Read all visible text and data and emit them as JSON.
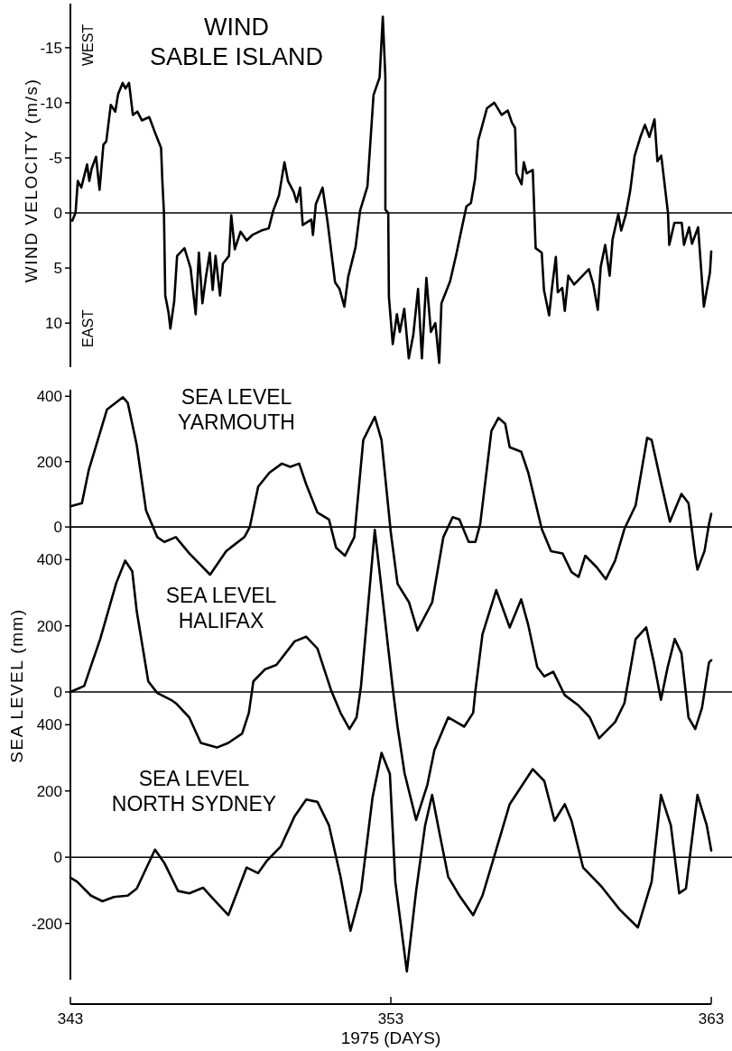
{
  "chart_data": [
    {
      "type": "line",
      "title": "WIND",
      "subtitle": "SABLE ISLAND",
      "ylabel": "WIND VELOCITY (m/s)",
      "annotations": [
        "WEST",
        "EAST"
      ],
      "xlim": [
        343,
        363
      ],
      "ylim": [
        14,
        -19
      ],
      "yticks": [
        -15,
        -10,
        -5,
        0,
        5,
        10
      ],
      "tick_labels": "y",
      "ref_lines": [
        {
          "axis": "y",
          "value": 0
        }
      ],
      "series": [
        {
          "color": "#000000",
          "x": [
            343.06,
            343.16,
            343.23,
            343.34,
            343.52,
            343.59,
            343.66,
            343.8,
            343.91,
            344.03,
            344.12,
            344.26,
            344.4,
            344.49,
            344.63,
            344.72,
            344.83,
            344.95,
            345.09,
            345.23,
            345.46,
            345.64,
            345.83,
            345.87,
            345.92,
            345.96,
            346.06,
            346.12,
            346.24,
            346.33,
            346.56,
            346.75,
            346.91,
            347.01,
            347.12,
            347.23,
            347.35,
            347.44,
            347.53,
            347.67,
            347.76,
            347.95,
            348.02,
            348.13,
            348.31,
            348.5,
            348.68,
            348.96,
            349.19,
            349.33,
            349.51,
            349.68,
            349.79,
            349.97,
            350.06,
            350.17,
            350.25,
            350.52,
            350.57,
            350.66,
            350.87,
            351.03,
            351.26,
            351.4,
            351.55,
            351.67,
            351.9,
            352.04,
            352.27,
            352.46,
            352.65,
            352.75,
            352.83,
            352.83,
            352.92,
            352.94,
            353.06,
            353.19,
            353.28,
            353.42,
            353.56,
            353.7,
            353.85,
            353.97,
            354.11,
            354.25,
            354.39,
            354.51,
            354.58,
            354.85,
            355.04,
            355.22,
            355.36,
            355.5,
            355.63,
            355.73,
            355.86,
            356.0,
            356.23,
            356.46,
            356.65,
            356.78,
            356.88,
            356.92,
            357.08,
            357.15,
            357.24,
            357.43,
            357.48,
            357.52,
            357.71,
            357.78,
            357.94,
            358.03,
            358.15,
            358.21,
            358.35,
            358.43,
            358.54,
            358.72,
            358.95,
            359.18,
            359.32,
            359.46,
            359.55,
            359.69,
            359.83,
            359.92,
            360.1,
            360.19,
            360.33,
            360.47,
            360.61,
            360.79,
            360.93,
            361.07,
            361.23,
            361.32,
            361.44,
            361.65,
            361.69,
            361.85,
            362.08,
            362.15,
            362.31,
            362.4,
            362.59,
            362.77,
            362.96,
            363.0
          ],
          "values": [
            0.7,
            0,
            -2.9,
            -2.3,
            -4.4,
            -2.9,
            -4.0,
            -5.1,
            -2.1,
            -6.2,
            -6.5,
            -9.8,
            -9.2,
            -10.8,
            -11.8,
            -11.3,
            -11.8,
            -8.9,
            -9.2,
            -8.4,
            -8.7,
            -7.3,
            -5.9,
            -2.9,
            0,
            7.5,
            9.0,
            10.5,
            8.0,
            3.9,
            3.2,
            5.0,
            9.2,
            3.6,
            8.2,
            5.8,
            3.6,
            7.0,
            3.9,
            7.5,
            4.6,
            3.9,
            0.2,
            3.3,
            1.7,
            2.5,
            2.0,
            1.6,
            1.4,
            -0.2,
            -1.6,
            -4.6,
            -2.9,
            -1.9,
            -1.0,
            -2.3,
            1.1,
            0.6,
            2.0,
            -0.8,
            -2.3,
            0.9,
            6.3,
            6.9,
            8.5,
            5.8,
            3.1,
            -0.2,
            -2.4,
            -10.7,
            -12.3,
            -17.8,
            -12.3,
            -0.3,
            0,
            7.6,
            11.9,
            9.2,
            10.8,
            8.7,
            13.2,
            11.1,
            6.9,
            13.2,
            5.9,
            10.8,
            10.0,
            13.6,
            8.2,
            6.2,
            3.8,
            1.3,
            -0.6,
            -0.9,
            -3.1,
            -6.6,
            -8.0,
            -9.5,
            -10.0,
            -8.9,
            -9.3,
            -8.2,
            -7.7,
            -3.6,
            -2.6,
            -4.6,
            -3.6,
            -3.9,
            0,
            3.2,
            3.6,
            7.0,
            9.3,
            6.8,
            4.0,
            7.2,
            6.8,
            8.9,
            5.7,
            6.5,
            5.8,
            5.1,
            6.5,
            8.8,
            4.9,
            2.9,
            5.7,
            2.4,
            0.1,
            1.6,
            0.2,
            -2.0,
            -5.2,
            -6.9,
            -8.0,
            -6.9,
            -8.5,
            -4.7,
            -5.2,
            0,
            2.9,
            0.9,
            0.9,
            2.9,
            1.3,
            2.8,
            1.3,
            8.5,
            5.4,
            3.5
          ]
        }
      ]
    },
    {
      "type": "line",
      "title": "SEA LEVEL",
      "subtitle": "YARMOUTH",
      "xlim": [
        343,
        363
      ],
      "ylim": [
        -320,
        420
      ],
      "yticks": [
        0,
        200,
        400
      ],
      "tick_labels": "y",
      "ref_lines": [
        {
          "axis": "y",
          "value": 0
        }
      ],
      "series": [
        {
          "color": "#000000",
          "x": [
            343,
            343.36,
            343.57,
            344.14,
            344.64,
            344.79,
            345.07,
            345.36,
            345.71,
            345.93,
            346.29,
            346.71,
            347.36,
            347.86,
            348.43,
            348.6,
            348.86,
            349.21,
            349.6,
            349.86,
            350.14,
            350.36,
            350.71,
            351.07,
            351.29,
            351.57,
            351.86,
            352.14,
            352.5,
            352.71,
            353.0,
            353.21,
            353.57,
            353.83,
            354.29,
            354.64,
            354.93,
            355.14,
            355.43,
            355.64,
            355.79,
            356.14,
            356.36,
            356.57,
            356.71,
            357.07,
            357.29,
            357.71,
            358.0,
            358.36,
            358.64,
            358.86,
            359.07,
            359.43,
            359.71,
            360.0,
            360.29,
            360.64,
            361.0,
            361.14,
            361.43,
            361.71,
            362.07,
            362.29,
            362.5,
            362.57,
            362.79,
            362.93,
            363.0
          ],
          "values": [
            63,
            73,
            173,
            359,
            397,
            380,
            251,
            51,
            -31,
            -46,
            -31,
            -81,
            -146,
            -74,
            -31,
            0,
            123,
            166,
            194,
            184,
            194,
            130,
            44,
            23,
            -63,
            -88,
            -31,
            266,
            337,
            266,
            -17,
            -174,
            -231,
            -317,
            -231,
            -31,
            30,
            23,
            -46,
            -46,
            9,
            294,
            334,
            316,
            244,
            230,
            166,
            -6,
            -74,
            -81,
            -138,
            -153,
            -88,
            -124,
            -160,
            -103,
            -6,
            66,
            273,
            266,
            137,
            16,
            101,
            73,
            -88,
            -131,
            -74,
            9,
            40
          ]
        }
      ]
    },
    {
      "type": "line",
      "title": "SEA LEVEL",
      "subtitle": "HALIFAX",
      "ylabel": "SEA LEVEL (mm)",
      "xlim": [
        343,
        363
      ],
      "ylim": [
        -390,
        510
      ],
      "yticks": [
        0,
        200,
        400
      ],
      "tick_labels": "y",
      "ref_lines": [
        {
          "axis": "y",
          "value": 0
        }
      ],
      "series": [
        {
          "color": "#000000",
          "x": [
            343,
            343.43,
            343.93,
            344.43,
            344.71,
            344.93,
            345.07,
            345.43,
            345.71,
            346.14,
            346.29,
            346.71,
            347.07,
            347.57,
            347.93,
            348.36,
            348.57,
            348.71,
            349.07,
            349.43,
            350.0,
            350.36,
            350.71,
            351.14,
            351.43,
            351.71,
            351.93,
            352.07,
            352.5,
            353.07,
            353.21,
            353.43,
            353.79,
            354.14,
            354.36,
            354.79,
            355.29,
            355.57,
            355.64,
            355.86,
            356.29,
            356.71,
            357.07,
            357.29,
            357.57,
            357.79,
            358.07,
            358.43,
            358.86,
            359.21,
            359.5,
            360.0,
            360.29,
            360.64,
            360.97,
            361.21,
            361.43,
            361.64,
            361.86,
            362.07,
            362.29,
            362.5,
            362.71,
            362.93,
            363.0
          ],
          "values": [
            0,
            18,
            160,
            329,
            397,
            365,
            244,
            32,
            -3,
            -24,
            -34,
            -77,
            -154,
            -168,
            -154,
            -126,
            -63,
            32,
            68,
            82,
            153,
            167,
            131,
            4,
            -63,
            -112,
            -77,
            18,
            490,
            4,
            -105,
            -246,
            -387,
            -281,
            -176,
            -77,
            -105,
            -63,
            4,
            174,
            308,
            195,
            280,
            202,
            75,
            47,
            61,
            -10,
            -41,
            -77,
            -140,
            -91,
            -34,
            160,
            195,
            89,
            -24,
            75,
            160,
            117,
            -77,
            -112,
            -49,
            89,
            96
          ]
        }
      ]
    },
    {
      "type": "line",
      "title": "SEA LEVEL",
      "subtitle": "NORTH SYDNEY",
      "xlabel": "1975 (DAYS)",
      "xlim": [
        343,
        363
      ],
      "xticks": [
        343,
        353,
        363
      ],
      "ylim": [
        -370,
        420
      ],
      "yticks": [
        -200,
        0,
        200,
        400
      ],
      "ref_lines": [
        {
          "axis": "y",
          "value": 0
        }
      ],
      "series": [
        {
          "color": "#000000",
          "x": [
            343,
            343.21,
            343.64,
            344.0,
            344.36,
            344.79,
            345.07,
            345.64,
            345.93,
            346.36,
            346.71,
            347.14,
            347.43,
            347.93,
            348.5,
            348.86,
            349.14,
            349.57,
            350.0,
            350.36,
            350.71,
            351.07,
            351.43,
            351.74,
            352.07,
            352.43,
            352.71,
            352.97,
            353.14,
            353.5,
            353.79,
            354.07,
            354.29,
            354.5,
            354.79,
            355.14,
            355.57,
            355.86,
            356.21,
            356.71,
            357.43,
            357.79,
            358.11,
            358.43,
            358.64,
            359.0,
            359.57,
            360.14,
            360.71,
            361.14,
            361.43,
            361.74,
            362.0,
            362.21,
            362.57,
            362.86,
            363.0
          ],
          "values": [
            -62,
            -74,
            -116,
            -133,
            -120,
            -116,
            -95,
            23,
            -17,
            -102,
            -109,
            -92,
            -123,
            -175,
            -31,
            -48,
            -10,
            33,
            124,
            174,
            167,
            96,
            -59,
            -222,
            -102,
            181,
            315,
            252,
            -74,
            -345,
            -102,
            96,
            188,
            82,
            -59,
            -116,
            -175,
            -116,
            -3,
            160,
            266,
            230,
            110,
            160,
            110,
            -31,
            -88,
            -158,
            -212,
            -74,
            188,
            96,
            -109,
            -95,
            188,
            96,
            20
          ]
        }
      ]
    }
  ]
}
